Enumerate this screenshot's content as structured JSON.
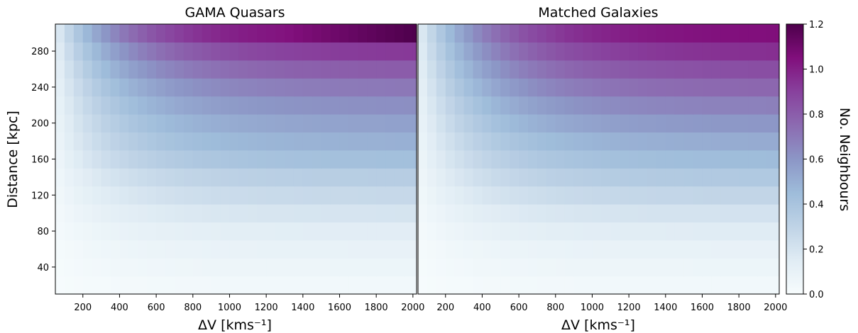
{
  "chart_data": [
    {
      "type": "heatmap",
      "title": "GAMA Quasars",
      "xlabel": "ΔV [kms⁻¹]",
      "ylabel": "Distance [kpc]",
      "xlim": [
        50,
        2020
      ],
      "ylim": [
        10,
        310
      ],
      "x_ticks": [
        200,
        400,
        600,
        800,
        1000,
        1200,
        1400,
        1600,
        1800,
        2000
      ],
      "y_ticks": [
        40,
        80,
        120,
        160,
        200,
        240,
        280
      ],
      "x_bin_edges": [
        50,
        100,
        150,
        200,
        250,
        300,
        350,
        400,
        450,
        500,
        550,
        600,
        650,
        700,
        750,
        800,
        850,
        900,
        950,
        1000,
        1050,
        1100,
        1150,
        1200,
        1250,
        1300,
        1350,
        1400,
        1450,
        1500,
        1550,
        1600,
        1650,
        1700,
        1750,
        1800,
        1850,
        1900,
        1950,
        2000,
        2020
      ],
      "y_bin_edges": [
        10,
        30,
        50,
        70,
        90,
        110,
        130,
        150,
        170,
        190,
        210,
        230,
        250,
        270,
        290,
        310
      ],
      "value_model": "v = A(row) * (1 - exp(-dv/400))",
      "row_amplitudes": [
        0.04,
        0.07,
        0.1,
        0.14,
        0.2,
        0.27,
        0.34,
        0.43,
        0.5,
        0.56,
        0.63,
        0.71,
        0.81,
        0.93,
        1.08
      ],
      "top_row_peak_increase_from_1300": 0.12
    },
    {
      "type": "heatmap",
      "title": "Matched Galaxies",
      "xlabel": "ΔV [kms⁻¹]",
      "ylabel": "",
      "xlim": [
        50,
        2020
      ],
      "ylim": [
        10,
        310
      ],
      "x_ticks": [
        200,
        400,
        600,
        800,
        1000,
        1200,
        1400,
        1600,
        1800,
        2000
      ],
      "y_ticks": [],
      "x_bin_edges": [
        50,
        100,
        150,
        200,
        250,
        300,
        350,
        400,
        450,
        500,
        550,
        600,
        650,
        700,
        750,
        800,
        850,
        900,
        950,
        1000,
        1050,
        1100,
        1150,
        1200,
        1250,
        1300,
        1350,
        1400,
        1450,
        1500,
        1550,
        1600,
        1650,
        1700,
        1750,
        1800,
        1850,
        1900,
        1950,
        2000,
        2020
      ],
      "y_bin_edges": [
        10,
        30,
        50,
        70,
        90,
        110,
        130,
        150,
        170,
        190,
        210,
        230,
        250,
        270,
        290,
        310
      ],
      "value_model": "v = A(row) * (1 - exp(-dv/400))",
      "row_amplitudes": [
        0.04,
        0.07,
        0.1,
        0.15,
        0.21,
        0.29,
        0.37,
        0.45,
        0.52,
        0.6,
        0.68,
        0.77,
        0.86,
        0.96,
        1.06
      ],
      "top_row_peak_increase_from_1300": 0.0
    }
  ],
  "colorbar": {
    "label": "No. Neighbours",
    "range": [
      0.0,
      1.2
    ],
    "ticks": [
      "0.0",
      "0.2",
      "0.4",
      "0.6",
      "0.8",
      "1.0",
      "1.2"
    ],
    "colormap": "BuPu",
    "stops": [
      "#f7fcfd",
      "#e0ecf4",
      "#bfd3e6",
      "#9ebcda",
      "#8c96c6",
      "#8c6bb1",
      "#88419d",
      "#810f7c",
      "#4d004b"
    ]
  }
}
